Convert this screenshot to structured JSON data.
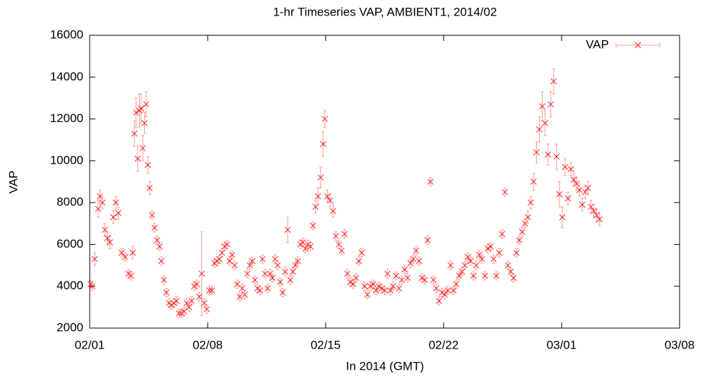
{
  "chart_data": {
    "type": "scatter",
    "title": "1-hr Timeseries VAP, AMBIENT1, 2014/02",
    "x_label": "In 2014 (GMT)",
    "y_label": "VAP",
    "xlim": [
      0,
      35
    ],
    "ylim": [
      2000,
      16000
    ],
    "xticks": [
      {
        "value": 0,
        "label": "02/01"
      },
      {
        "value": 7,
        "label": "02/08"
      },
      {
        "value": 14,
        "label": "02/15"
      },
      {
        "value": 21,
        "label": "02/22"
      },
      {
        "value": 28,
        "label": "03/01"
      },
      {
        "value": 35,
        "label": "03/08"
      }
    ],
    "yticks": [
      2000,
      4000,
      6000,
      8000,
      10000,
      12000,
      14000,
      16000
    ],
    "legend": "top-right",
    "x": [
      0.05,
      0.15,
      0.3,
      0.5,
      0.6,
      0.75,
      0.9,
      1.05,
      1.2,
      1.4,
      1.55,
      1.7,
      1.9,
      2.1,
      2.3,
      2.45,
      2.55,
      2.65,
      2.75,
      2.85,
      2.95,
      3.05,
      3.15,
      3.25,
      3.35,
      3.45,
      3.55,
      3.7,
      3.85,
      4.0,
      4.15,
      4.25,
      4.4,
      4.55,
      4.7,
      4.85,
      5.0,
      5.15,
      5.3,
      5.45,
      5.6,
      5.75,
      5.9,
      6.05,
      6.2,
      6.35,
      6.5,
      6.65,
      6.8,
      6.95,
      7.1,
      7.25,
      7.4,
      7.55,
      7.7,
      7.85,
      8.0,
      8.15,
      8.3,
      8.45,
      8.6,
      8.75,
      8.9,
      9.05,
      9.2,
      9.35,
      9.5,
      9.65,
      9.8,
      9.95,
      10.1,
      10.25,
      10.4,
      10.55,
      10.7,
      10.85,
      11.0,
      11.15,
      11.3,
      11.45,
      11.6,
      11.75,
      11.9,
      12.05,
      12.2,
      12.35,
      12.5,
      12.65,
      12.8,
      12.95,
      13.1,
      13.25,
      13.4,
      13.55,
      13.7,
      13.85,
      13.95,
      14.1,
      14.27,
      14.44,
      14.61,
      14.78,
      14.95,
      15.12,
      15.29,
      15.46,
      15.63,
      15.8,
      15.97,
      16.14,
      16.31,
      16.48,
      16.65,
      16.82,
      16.99,
      17.16,
      17.33,
      17.5,
      17.67,
      17.84,
      18.01,
      18.18,
      18.35,
      18.52,
      18.69,
      18.86,
      19.03,
      19.2,
      19.37,
      19.54,
      19.71,
      19.88,
      20.05,
      20.22,
      20.39,
      20.56,
      20.73,
      20.9,
      21.07,
      21.24,
      21.41,
      21.58,
      21.75,
      21.92,
      22.09,
      22.26,
      22.43,
      22.6,
      22.77,
      22.94,
      23.11,
      23.28,
      23.45,
      23.62,
      23.79,
      23.96,
      24.13,
      24.3,
      24.47,
      24.64,
      24.81,
      24.98,
      25.15,
      25.32,
      25.49,
      25.66,
      25.83,
      26.0,
      26.17,
      26.34,
      26.51,
      26.68,
      26.85,
      27.02,
      27.19,
      27.36,
      27.53,
      27.7,
      27.87,
      28.04,
      28.21,
      28.38,
      28.55,
      28.72,
      28.89,
      29.06,
      29.23,
      29.4,
      29.57,
      29.74,
      29.91,
      30.08,
      30.25
    ],
    "series": [
      {
        "name": "VAP",
        "color": "#ff2020",
        "values": [
          4100,
          4000,
          5300,
          7700,
          8300,
          8000,
          6700,
          6300,
          6100,
          7300,
          8000,
          7500,
          5600,
          5400,
          4600,
          4500,
          5600,
          11300,
          12300,
          10100,
          12400,
          12500,
          10600,
          11800,
          12700,
          9800,
          8700,
          7400,
          6800,
          6200,
          5900,
          5200,
          4300,
          3700,
          3200,
          3100,
          3200,
          3300,
          2700,
          2700,
          2800,
          3200,
          3000,
          3300,
          4000,
          4100,
          3500,
          4600,
          3200,
          2900,
          3800,
          3800,
          5100,
          5200,
          5300,
          5600,
          5900,
          6000,
          5200,
          5500,
          5000,
          4100,
          3500,
          3900,
          3600,
          4600,
          5000,
          5200,
          4300,
          3900,
          3800,
          5300,
          4600,
          3900,
          4600,
          4400,
          5300,
          5000,
          4200,
          3700,
          4700,
          6700,
          4300,
          4700,
          5000,
          5200,
          6000,
          6100,
          5800,
          6000,
          5900,
          6900,
          7800,
          8300,
          9200,
          10800,
          12000,
          8300,
          8100,
          7600,
          6400,
          6000,
          5700,
          6500,
          4600,
          4200,
          4100,
          4400,
          5200,
          5600,
          4000,
          3600,
          4000,
          4100,
          3800,
          4000,
          3900,
          3800,
          4600,
          3800,
          4000,
          4500,
          3900,
          4300,
          4800,
          4400,
          5100,
          5300,
          5700,
          5200,
          4400,
          4300,
          6200,
          9000,
          4300,
          3900,
          3300,
          3700,
          3600,
          3800,
          5000,
          3800,
          4100,
          4500,
          4700,
          5000,
          5400,
          5200,
          4500,
          5000,
          5500,
          5300,
          4500,
          5800,
          5900,
          5300,
          4500,
          5600,
          6500,
          8500,
          5000,
          4700,
          4400,
          5600,
          6200,
          6600,
          7000,
          7300,
          8000,
          9000,
          10400,
          11500,
          12600,
          11800,
          10300,
          12700,
          13800,
          10200,
          8400,
          7300,
          9700,
          8200,
          9600,
          9100,
          8900,
          8600,
          7900,
          8500,
          8700,
          7800,
          7600,
          7400,
          7200
        ],
        "errors": [
          200,
          200,
          300,
          400,
          300,
          300,
          300,
          300,
          300,
          300,
          300,
          300,
          200,
          200,
          200,
          200,
          300,
          600,
          700,
          600,
          800,
          700,
          600,
          500,
          600,
          400,
          300,
          200,
          200,
          200,
          200,
          200,
          200,
          200,
          200,
          200,
          200,
          200,
          200,
          200,
          200,
          200,
          200,
          200,
          200,
          200,
          200,
          2000,
          200,
          200,
          200,
          200,
          200,
          200,
          200,
          200,
          200,
          200,
          200,
          200,
          200,
          200,
          200,
          200,
          200,
          200,
          200,
          200,
          200,
          200,
          200,
          200,
          200,
          200,
          200,
          200,
          200,
          200,
          200,
          200,
          200,
          600,
          200,
          200,
          200,
          200,
          200,
          200,
          200,
          200,
          200,
          200,
          300,
          400,
          500,
          600,
          400,
          300,
          300,
          300,
          200,
          200,
          200,
          200,
          200,
          200,
          200,
          200,
          200,
          200,
          200,
          200,
          200,
          200,
          200,
          200,
          200,
          200,
          200,
          200,
          200,
          200,
          200,
          200,
          200,
          200,
          200,
          200,
          200,
          200,
          200,
          200,
          200,
          200,
          200,
          200,
          200,
          200,
          200,
          200,
          200,
          200,
          200,
          200,
          200,
          200,
          200,
          200,
          200,
          200,
          200,
          200,
          200,
          200,
          200,
          200,
          200,
          200,
          200,
          200,
          200,
          200,
          200,
          200,
          200,
          200,
          200,
          300,
          300,
          400,
          500,
          600,
          700,
          600,
          500,
          600,
          600,
          600,
          600,
          500,
          400,
          300,
          300,
          300,
          300,
          300,
          300,
          300,
          300,
          300,
          300,
          300,
          300
        ]
      }
    ]
  }
}
